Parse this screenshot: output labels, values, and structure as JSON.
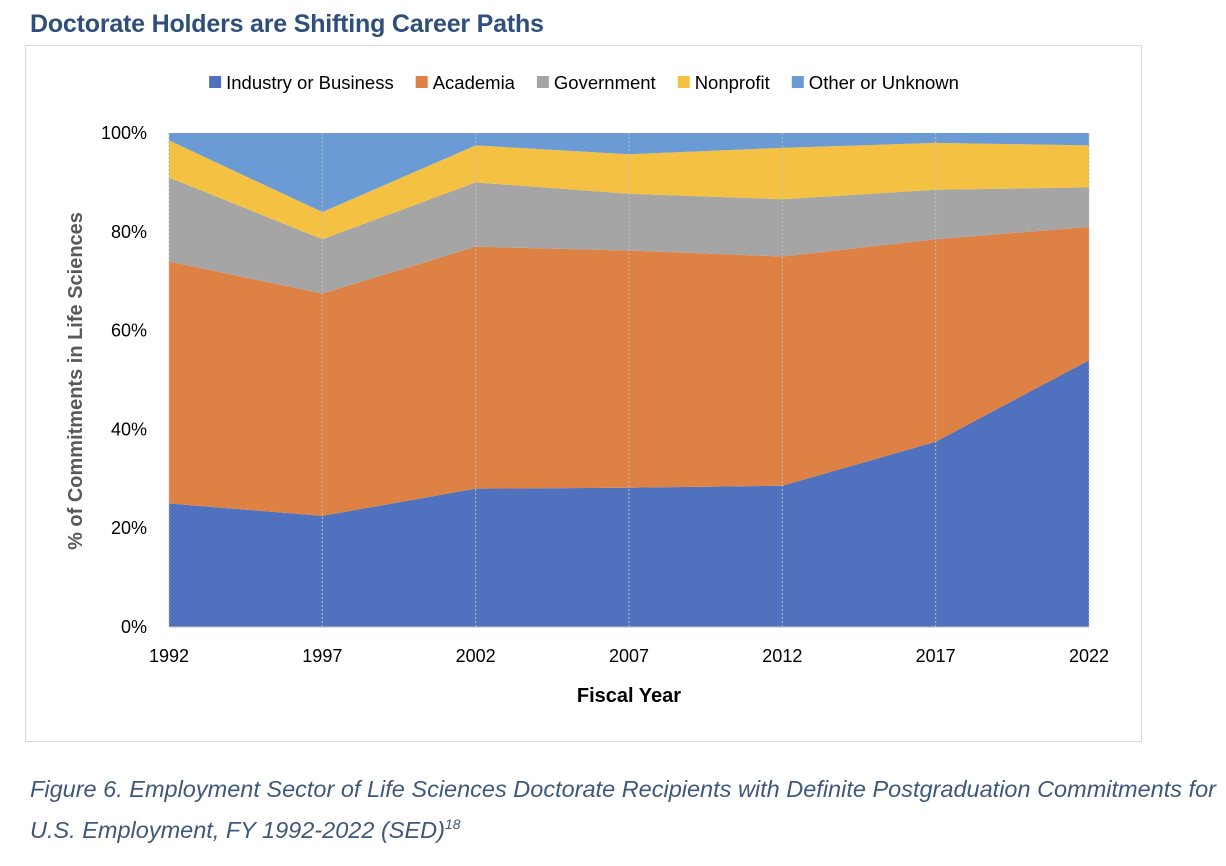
{
  "heading": "Doctorate Holders are Shifting Career Paths",
  "caption": {
    "text": "Figure 6. Employment Sector of Life Sciences Doctorate Recipients with Definite Postgraduation Commitments for U.S. Employment, FY 1992-2022 (SED)",
    "footnote": "18"
  },
  "chart_data": {
    "type": "area",
    "stacked": true,
    "xlabel": "Fiscal Year",
    "ylabel": "% of Commitments in Life Sciences",
    "ylim": [
      0,
      100
    ],
    "y_ticks": [
      "0%",
      "20%",
      "40%",
      "60%",
      "80%",
      "100%"
    ],
    "categories": [
      "1992",
      "1997",
      "2002",
      "2007",
      "2012",
      "2017",
      "2022"
    ],
    "grid": "vertical dotted lines at each category",
    "legend_position": "top",
    "series": [
      {
        "name": "Industry or Business",
        "color": "#4f71be",
        "values": [
          25,
          22.5,
          28,
          28.2,
          28.6,
          37.5,
          54
        ]
      },
      {
        "name": "Academia",
        "color": "#dd8244",
        "values": [
          49,
          45,
          49,
          48,
          46.4,
          41,
          27
        ]
      },
      {
        "name": "Government",
        "color": "#a5a5a5",
        "values": [
          17,
          11,
          13,
          11.5,
          11.6,
          10,
          8
        ]
      },
      {
        "name": "Nonprofit",
        "color": "#f4c142",
        "values": [
          7.5,
          5.5,
          7.5,
          8,
          10.4,
          9.5,
          8.5
        ]
      },
      {
        "name": "Other or Unknown",
        "color": "#6a9bd4",
        "values": [
          1.5,
          16,
          2.5,
          4.3,
          3,
          2,
          2.5
        ]
      }
    ]
  }
}
